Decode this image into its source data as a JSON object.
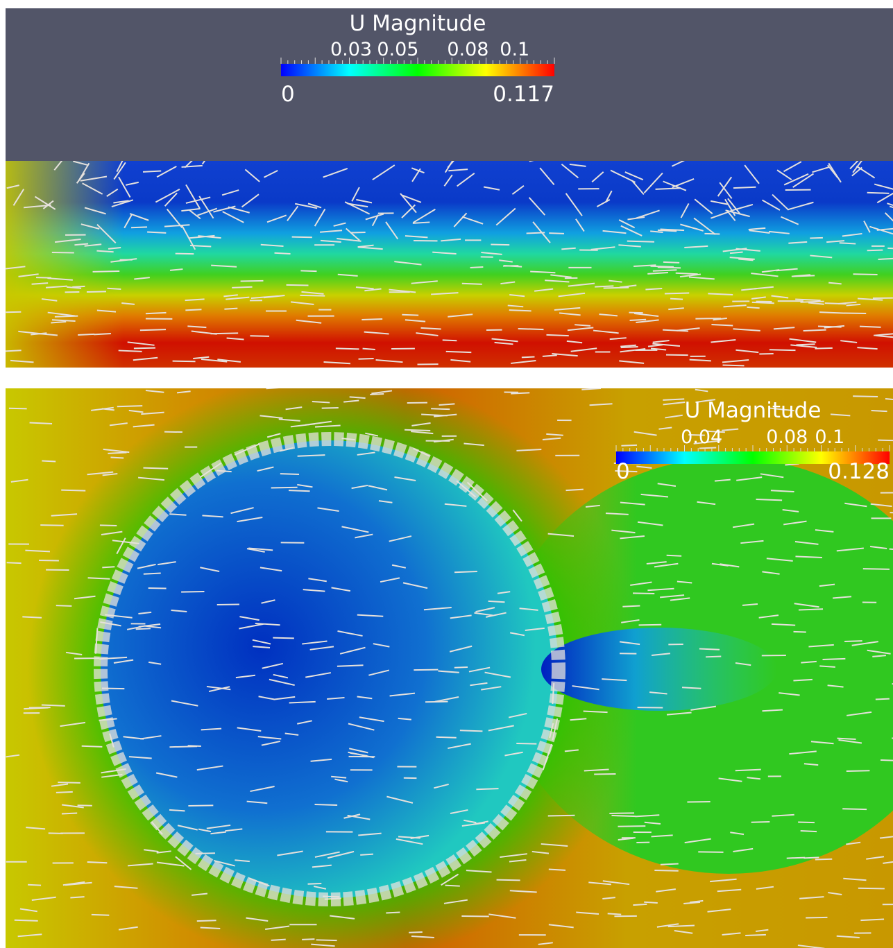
{
  "panels": [
    {
      "legend": {
        "title": "U Magnitude",
        "ticks": [
          "0.03",
          "0.05",
          "0.08",
          "0.1"
        ],
        "min": "0",
        "max": "0.117"
      }
    },
    {
      "legend": {
        "title": "U Magnitude",
        "ticks": [
          "0.04",
          "0.08",
          "0.1"
        ],
        "min": "0",
        "max": "0.128"
      }
    }
  ]
}
